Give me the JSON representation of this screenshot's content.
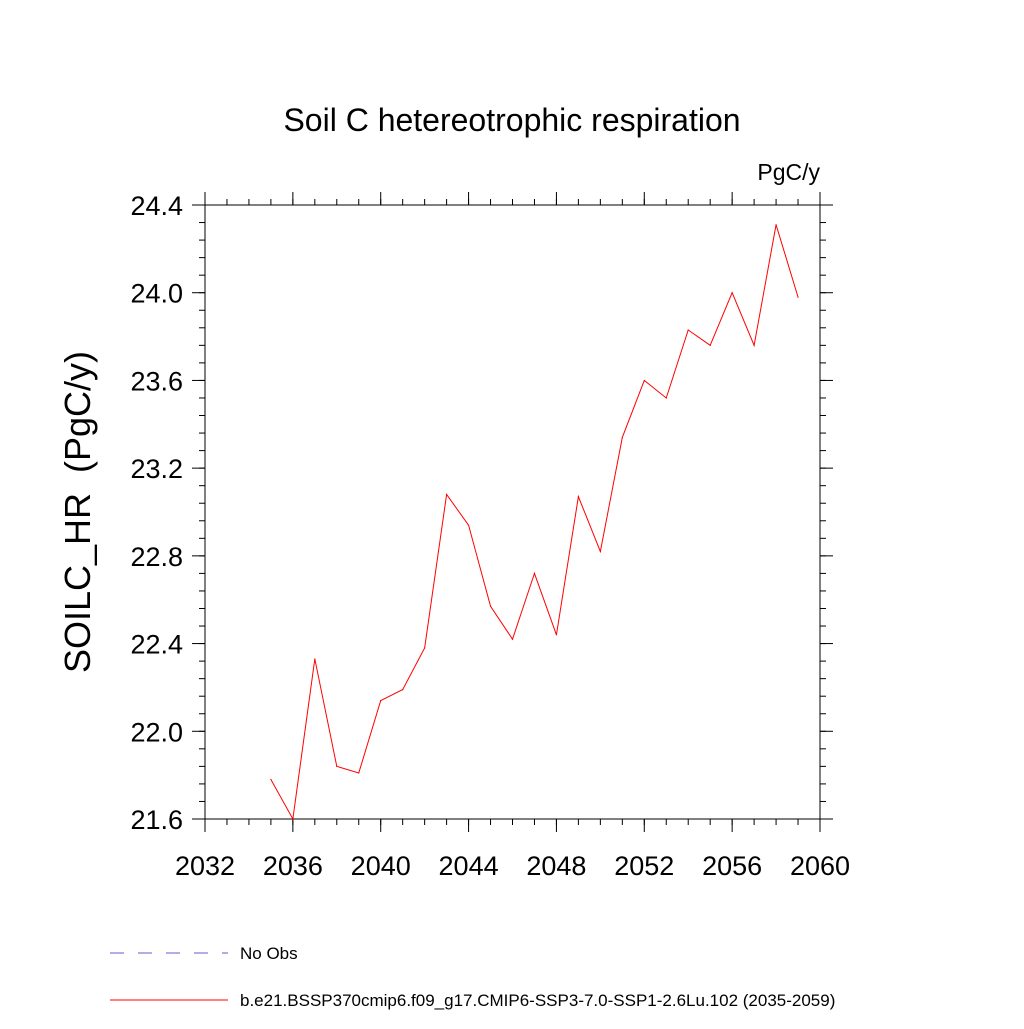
{
  "chart_data": {
    "type": "line",
    "title": "Soil C hetereotrophic respiration",
    "units_label": "PgC/y",
    "xlabel": "",
    "ylabel": "SOILC_HR  (PgC/y)",
    "xlim": [
      2032,
      2060
    ],
    "ylim": [
      21.6,
      24.4
    ],
    "x_ticks": [
      2032,
      2036,
      2040,
      2044,
      2048,
      2052,
      2056,
      2060
    ],
    "x_tick_labels": [
      "2032",
      "2036",
      "2040",
      "2044",
      "2048",
      "2052",
      "2056",
      "2060"
    ],
    "y_ticks": [
      21.6,
      22.0,
      22.4,
      22.8,
      23.2,
      23.6,
      24.0,
      24.4
    ],
    "y_tick_labels": [
      "21.6",
      "22.0",
      "22.4",
      "22.8",
      "23.2",
      "23.6",
      "24.0",
      "24.4"
    ],
    "grid": false,
    "legend_position": "bottom",
    "series": [
      {
        "name": "No Obs",
        "color": "#6a5acd",
        "dash": "dashed",
        "x": [],
        "values": []
      },
      {
        "name": "b.e21.BSSP370cmip6.f09_g17.CMIP6-SSP3-7.0-SSP1-2.6Lu.102 (2035-2059)",
        "color": "#ff0000",
        "dash": "solid",
        "x": [
          2035,
          2036,
          2037,
          2038,
          2039,
          2040,
          2041,
          2042,
          2043,
          2044,
          2045,
          2046,
          2047,
          2048,
          2049,
          2050,
          2051,
          2052,
          2053,
          2054,
          2055,
          2056,
          2057,
          2058,
          2059
        ],
        "values": [
          21.78,
          21.6,
          22.33,
          21.84,
          21.81,
          22.14,
          22.19,
          22.38,
          23.08,
          22.94,
          22.57,
          22.42,
          22.72,
          22.44,
          23.07,
          22.82,
          23.34,
          23.6,
          23.52,
          23.83,
          23.76,
          24.0,
          23.76,
          24.31,
          23.98
        ]
      }
    ]
  }
}
